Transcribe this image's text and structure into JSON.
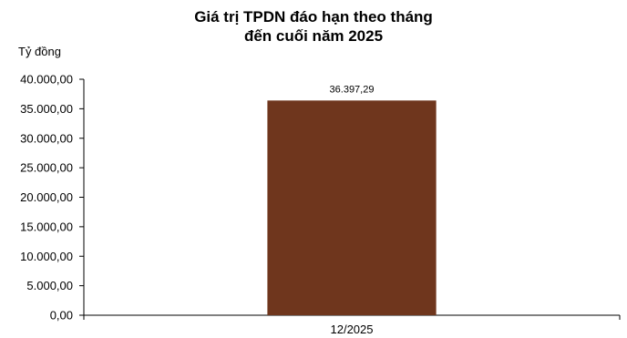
{
  "chart_data": {
    "type": "bar",
    "title_line1": "Giá trị TPDN đáo hạn theo tháng",
    "title_line2": "đến cuối năm 2025",
    "ylabel": "Tỷ đồng",
    "xlabel": "",
    "categories": [
      "12/2025"
    ],
    "values": [
      36397.29
    ],
    "data_labels": [
      "36.397,29"
    ],
    "ylim": [
      0,
      40000
    ],
    "yticks": [
      0,
      5000,
      10000,
      15000,
      20000,
      25000,
      30000,
      35000,
      40000
    ],
    "ytick_labels": [
      "0,00",
      "5.000,00",
      "10.000,00",
      "15.000,00",
      "20.000,00",
      "25.000,00",
      "30.000,00",
      "35.000,00",
      "40.000,00"
    ],
    "grid": false,
    "bar_color": "#6F361D"
  }
}
